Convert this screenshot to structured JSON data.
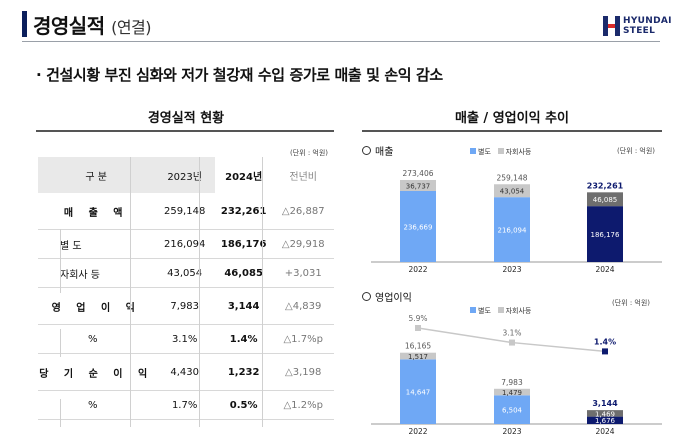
{
  "header": {
    "title": "경영실적",
    "subtitle": "(연결)",
    "logo_line1": "HYUNDAI",
    "logo_line2": "STEEL"
  },
  "headline": "· 건설시황 부진 심화와 저가 철강재 수입 증가로 매출 및 손익 감소",
  "left": {
    "title": "경영실적 현황",
    "unit": "(단위 : 억원)",
    "headers": [
      "구 분",
      "2023년",
      "2024년",
      "전년비"
    ],
    "rows": [
      {
        "label": "매 출 액",
        "y2023": "259,148",
        "y2024": "232,261",
        "diff": "△26,887"
      },
      {
        "label": "별 도",
        "y2023": "216,094",
        "y2024": "186,176",
        "diff": "△29,918"
      },
      {
        "label": "자회사 등",
        "y2023": "43,054",
        "y2024": "46,085",
        "diff": "+3,031"
      },
      {
        "label": "영 업 이 익",
        "y2023": "7,983",
        "y2024": "3,144",
        "diff": "△4,839"
      },
      {
        "label": "%",
        "y2023": "3.1%",
        "y2024": "1.4%",
        "diff": "△1.7%p"
      },
      {
        "label": "당 기 순 이 익",
        "y2023": "4,430",
        "y2024": "1,232",
        "diff": "△3,198"
      },
      {
        "label": "%",
        "y2023": "1.7%",
        "y2024": "0.5%",
        "diff": "△1.2%p"
      }
    ]
  },
  "right": {
    "title": "매출 / 영업이익 추이",
    "unit": "(단위 : 억원)"
  },
  "colors": {
    "separate_past": "#6fa8f5",
    "separate_2024": "#0d1a6e",
    "subsidiary_past": "#c8c8c8",
    "subsidiary_2024": "#6e6e6e",
    "margin_line": "#c8c8c8",
    "margin_2024": "#0d1a6e"
  },
  "chart_data": [
    {
      "type": "bar",
      "title": "매출",
      "categories": [
        "2022",
        "2023",
        "2024"
      ],
      "series": [
        {
          "name": "별도",
          "values": [
            236669,
            216094,
            186176
          ],
          "labels": [
            "236,669",
            "216,094",
            "186,176"
          ]
        },
        {
          "name": "자회사등",
          "values": [
            36737,
            43054,
            46085
          ],
          "labels": [
            "36,737",
            "43,054",
            "46,085"
          ]
        }
      ],
      "totals": [
        273406,
        259148,
        232261
      ],
      "total_labels": [
        "273,406",
        "259,148",
        "232,261"
      ],
      "ylim": [
        0,
        280000
      ]
    },
    {
      "type": "bar",
      "title": "영업이익",
      "categories": [
        "2022",
        "2023",
        "2024"
      ],
      "series": [
        {
          "name": "별도",
          "values": [
            14647,
            6504,
            1676
          ],
          "labels": [
            "14,647",
            "6,504",
            "1,676"
          ]
        },
        {
          "name": "자회사등",
          "values": [
            1517,
            1479,
            1469
          ],
          "labels": [
            "1,517",
            "1,479",
            "1,469"
          ]
        }
      ],
      "totals": [
        16165,
        7983,
        3144
      ],
      "total_labels": [
        "16,165",
        "7,983",
        "3,144"
      ],
      "margin": {
        "values": [
          5.9,
          3.1,
          1.4
        ],
        "labels": [
          "5.9%",
          "3.1%",
          "1.4%"
        ]
      },
      "ylim": [
        0,
        17000
      ]
    }
  ]
}
